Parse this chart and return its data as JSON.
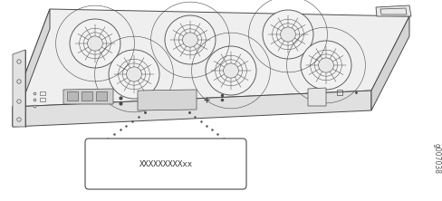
{
  "bg_color": "#ffffff",
  "line_color": "#4a4a4a",
  "label_box_text": "XXXXXXXXXxx",
  "figure_id": "g007038",
  "label_fontsize": 6.5,
  "id_fontsize": 5.5,
  "top_face_color": "#efefef",
  "front_face_color": "#e0e0e0",
  "right_face_color": "#d4d4d4",
  "left_face_color": "#d8d8d8",
  "fan_outer_color": "#f2f2f2",
  "fan_blade_color": "#c8c8c8",
  "fan_hub_color": "#e8e8e8",
  "serial_label_color": "#d5d5d5"
}
